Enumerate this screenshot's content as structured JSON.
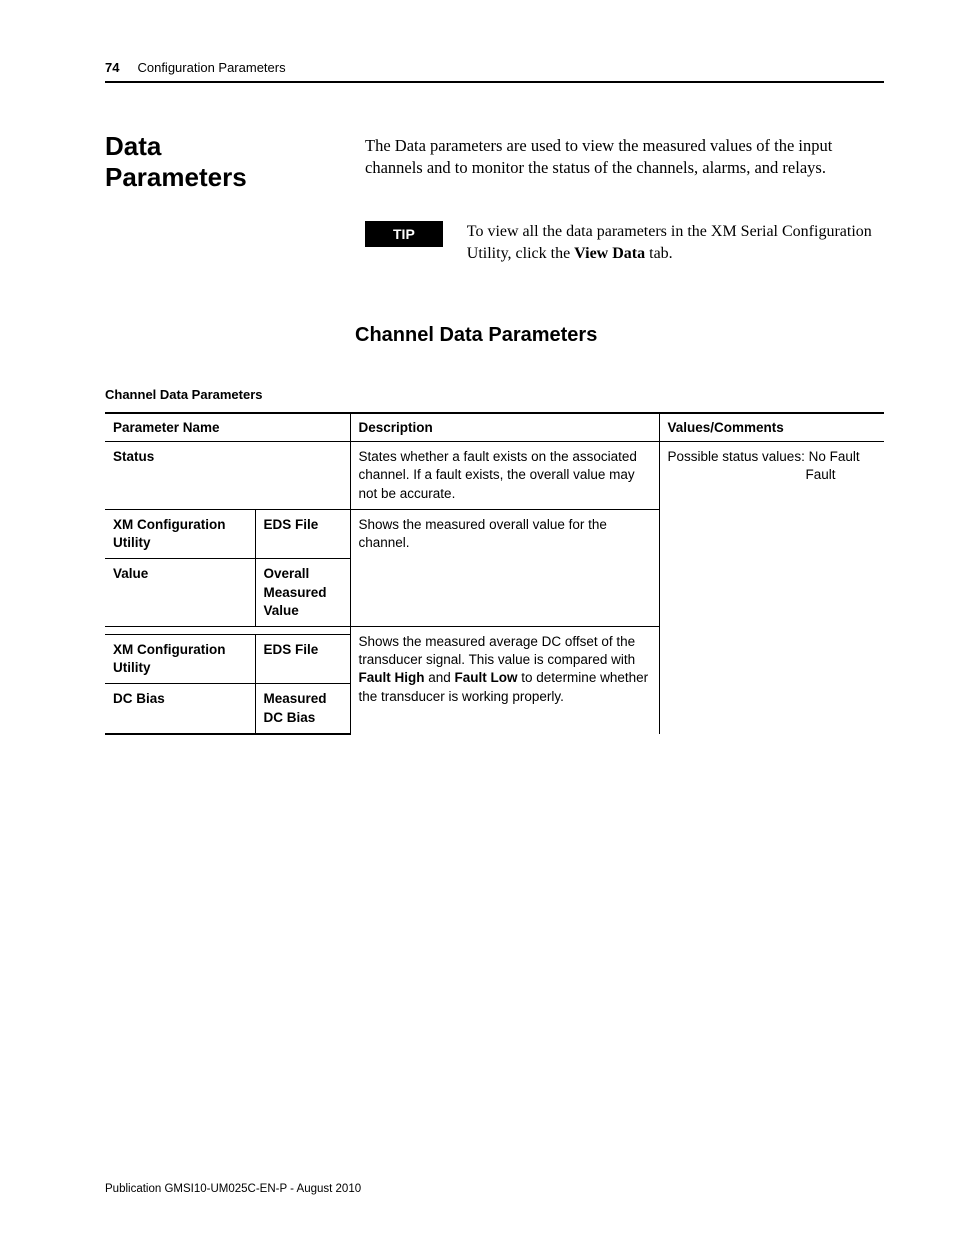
{
  "header": {
    "page_number": "74",
    "running_title": "Configuration Parameters"
  },
  "section": {
    "title": "Data Parameters",
    "intro": "The Data parameters are used to view the measured values of the input channels and to monitor the status of the channels, alarms, and relays."
  },
  "tip": {
    "label": "TIP",
    "text_before": "To view all the data parameters in the XM Serial Configuration Utility, click the ",
    "bold": "View Data",
    "text_after": " tab."
  },
  "subheading": "Channel Data Parameters",
  "table": {
    "caption": "Channel Data Parameters",
    "headers": {
      "param": "Parameter Name",
      "desc": "Description",
      "values": "Values/Comments"
    },
    "rows": {
      "status": {
        "name": "Status",
        "desc": "States whether a fault exists on the associated channel. If a fault exists, the overall value may not be accurate.",
        "values_line1": "Possible status values: No Fault",
        "values_line2": "Fault"
      },
      "value": {
        "left_top_a": "XM Configuration Utility",
        "left_top_b": "EDS File",
        "left_bot_a": "Value",
        "left_bot_b": "Overall Measured Value",
        "desc": "Shows the measured overall value for the channel."
      },
      "dcbias": {
        "left_top_a": "XM Configuration Utility",
        "left_top_b": "EDS File",
        "left_bot_a": "DC Bias",
        "left_bot_b": "Measured DC Bias",
        "desc_pre": "Shows the measured average DC offset of the transducer signal. This value is compared with ",
        "bold1": "Fault High",
        "desc_mid": " and ",
        "bold2": "Fault Low",
        "desc_post": " to determine whether the transducer is working properly."
      }
    }
  },
  "footer": "Publication GMSI10-UM025C-EN-P - August 2010"
}
